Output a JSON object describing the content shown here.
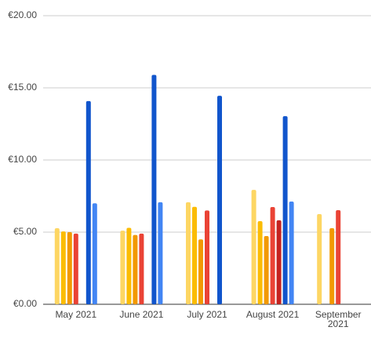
{
  "chart_data": {
    "type": "bar",
    "categories": [
      "May 2021",
      "June 2021",
      "July 2021",
      "August 2021",
      "September 2021"
    ],
    "series": [
      {
        "color": "#fdd663",
        "values": [
          5.27,
          5.1,
          7.07,
          7.93,
          6.25
        ]
      },
      {
        "color": "#fbbc04",
        "values": [
          5.05,
          5.3,
          6.75,
          5.76,
          null
        ]
      },
      {
        "color": "#f29900",
        "values": [
          5.0,
          4.8,
          4.5,
          4.73,
          5.27
        ]
      },
      {
        "color": "#ea4335",
        "values": [
          4.9,
          4.9,
          6.5,
          6.74,
          6.52
        ]
      },
      {
        "color": "#c5221f",
        "values": [
          null,
          null,
          null,
          5.82,
          null
        ]
      },
      {
        "color": "#1155cc",
        "values": [
          14.08,
          15.9,
          14.45,
          13.04,
          null
        ]
      },
      {
        "color": "#4285f4",
        "values": [
          7.0,
          7.07,
          null,
          7.12,
          null
        ]
      }
    ],
    "ylim": [
      0,
      20
    ],
    "yticks": [
      {
        "value": 0,
        "label": "€0.00"
      },
      {
        "value": 5,
        "label": "€5.00"
      },
      {
        "value": 10,
        "label": "€10.00"
      },
      {
        "value": 15,
        "label": "€15.00"
      },
      {
        "value": 20,
        "label": "€20.00"
      }
    ],
    "grid": true
  }
}
